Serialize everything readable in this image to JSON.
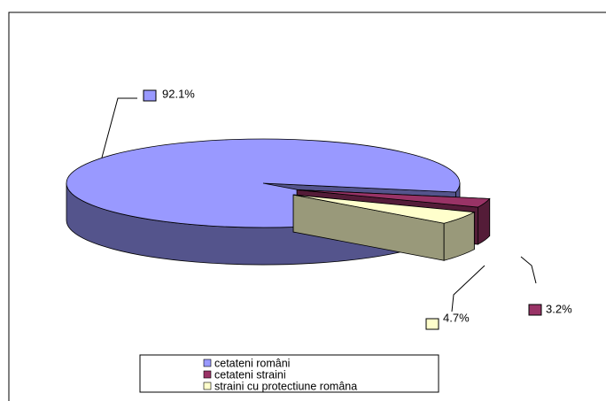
{
  "chart_data": {
    "type": "pie",
    "categories": [
      "cetateni români",
      "cetateni straini",
      "straini cu protectiune româna"
    ],
    "values": [
      92.1,
      3.2,
      4.7
    ],
    "value_labels": [
      "92.1%",
      "3.2%",
      "4.7%"
    ],
    "colors": [
      "#9999ff",
      "#993366",
      "#ffffcc"
    ],
    "legend": "bottom"
  }
}
